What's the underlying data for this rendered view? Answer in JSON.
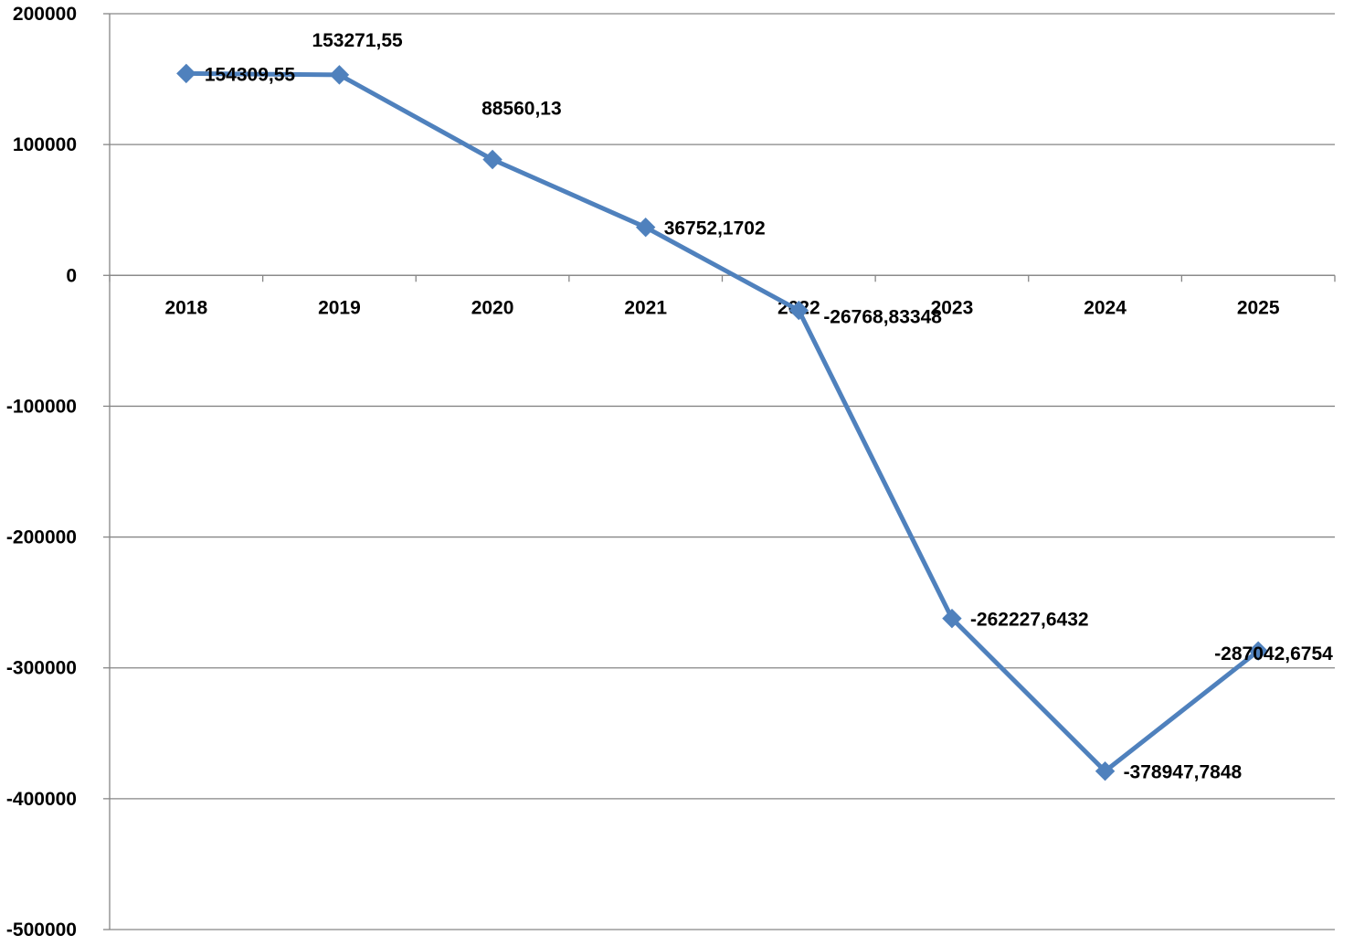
{
  "chart_data": {
    "type": "line",
    "title": "",
    "xlabel": "",
    "ylabel": "",
    "categories": [
      "2018",
      "2019",
      "2020",
      "2021",
      "2022",
      "2023",
      "2024",
      "2025"
    ],
    "series": [
      {
        "values": [
          154309.55,
          153271.55,
          88560.13,
          36752.1702,
          -26768.83348,
          -262227.6432,
          -378947.7848,
          -287042.6754
        ],
        "labels": [
          "154309,55",
          "153271,55",
          "88560,13",
          "36752,1702",
          "-26768,83348",
          "-262227,6432",
          "-378947,7848",
          "-287042,6754"
        ],
        "color": "#4F81BD",
        "marker": "diamond"
      }
    ],
    "ylim": [
      -500000,
      200000
    ],
    "yticks": [
      200000,
      100000,
      0,
      -100000,
      -200000,
      -300000,
      -400000,
      -500000
    ],
    "ytick_labels": [
      "200000",
      "100000",
      "0",
      "-100000",
      "-200000",
      "-300000",
      "-400000",
      "-500000"
    ],
    "grid": true,
    "legend": "none",
    "colors": {
      "line": "#4F81BD",
      "grid": "#868686",
      "axis": "#868686"
    }
  }
}
